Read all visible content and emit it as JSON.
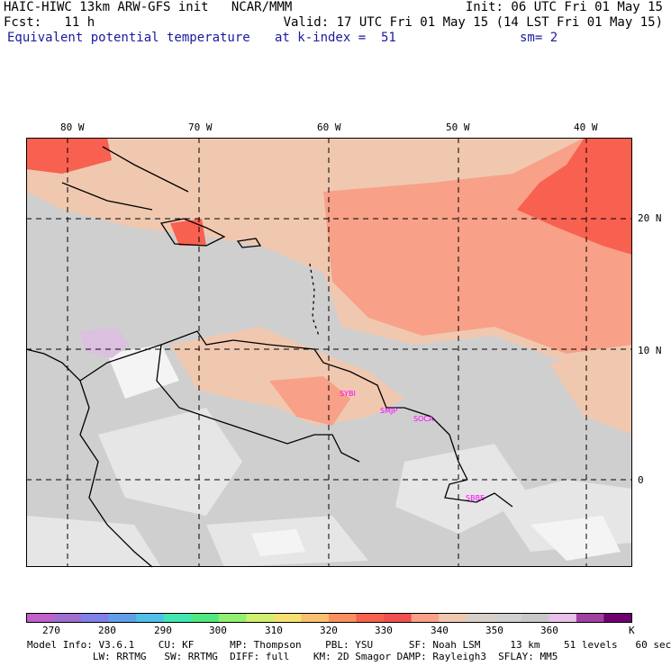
{
  "header": {
    "line1_left": "HAIC-HIWC 13km ARW-GFS init   NCAR/MMM",
    "line1_right": "Init: 06 UTC Fri 01 May 15",
    "line2_left": "Fcst:   11 h",
    "line2_right": "Valid: 17 UTC Fri 01 May 15 (14 LST Fri 01 May 15)",
    "line3_field": "Equivalent potential temperature",
    "line3_level": "at k-index =  51",
    "line3_sm": "sm= 2"
  },
  "map": {
    "lon_labels": [
      "80 W",
      "70 W",
      "60 W",
      "50 W",
      "40 W"
    ],
    "lat_labels": [
      "20 N",
      "10 N",
      "0"
    ],
    "stations": [
      "SYBI",
      "SMJP",
      "SOCA",
      "SBBE"
    ]
  },
  "colorbar": {
    "colors": [
      "#c060c8",
      "#a070d0",
      "#8080e8",
      "#60a0e8",
      "#50c0e8",
      "#40e8b0",
      "#50e880",
      "#90f070",
      "#d0f070",
      "#f8e070",
      "#f8c070",
      "#f89060",
      "#f86050",
      "#f05050",
      "#f8a088",
      "#f0c8b0",
      "#d8d0c8",
      "#d0d0d0",
      "#c8c8c8",
      "#e8c0e8",
      "#a040a0",
      "#700070"
    ],
    "tick_labels": [
      "270",
      "280",
      "290",
      "300",
      "310",
      "320",
      "330",
      "340",
      "350",
      "360"
    ],
    "unit": "K"
  },
  "footer": {
    "line1": "Model Info: V3.6.1    CU: KF      MP: Thompson    PBL: YSU      SF: Noah LSM     13 km    51 levels   60 sec",
    "line2": "           LW: RRTMG   SW: RRTMG  DIFF: full    KM: 2D Smagor DAMP: Rayleigh3  SFLAY: MM5"
  }
}
